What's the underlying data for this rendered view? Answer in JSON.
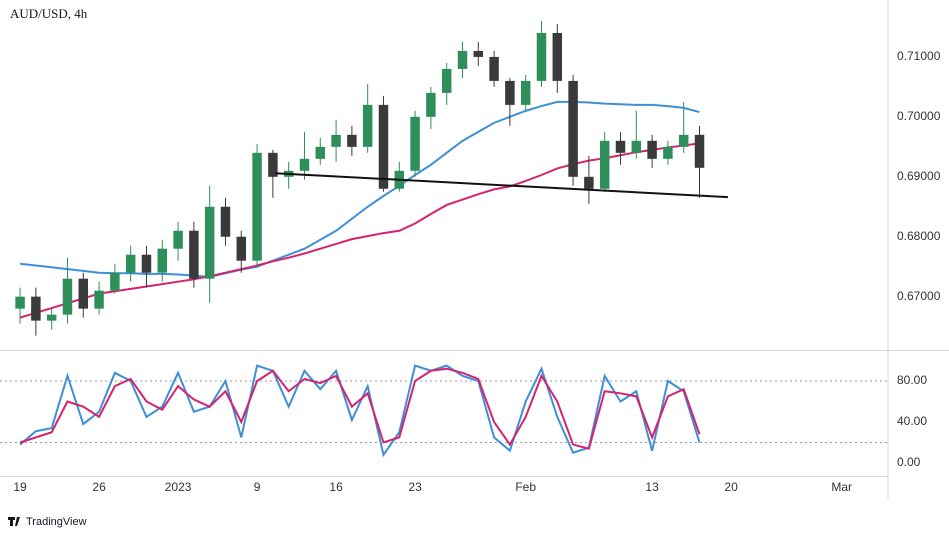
{
  "chart_data": [
    {
      "type": "candlestick",
      "title": "AUD/USD, 4h",
      "x": [
        0,
        1,
        2,
        3,
        4,
        5,
        6,
        7,
        8,
        9,
        10,
        11,
        12,
        13,
        14,
        15,
        16,
        17,
        18,
        19,
        20,
        21,
        22,
        23,
        24,
        25,
        26,
        27,
        28,
        29,
        30,
        31,
        32,
        33,
        34,
        35,
        36,
        37,
        38,
        39,
        40,
        41,
        42,
        43
      ],
      "open": [
        0.668,
        0.67,
        0.666,
        0.667,
        0.673,
        0.668,
        0.671,
        0.674,
        0.677,
        0.674,
        0.678,
        0.681,
        0.673,
        0.685,
        0.68,
        0.676,
        0.694,
        0.69,
        0.691,
        0.693,
        0.695,
        0.697,
        0.695,
        0.702,
        0.688,
        0.691,
        0.7,
        0.704,
        0.708,
        0.711,
        0.71,
        0.706,
        0.702,
        0.706,
        0.714,
        0.706,
        0.69,
        0.688,
        0.696,
        0.694,
        0.696,
        0.693,
        0.695,
        0.697
      ],
      "high": [
        0.6715,
        0.6715,
        0.668,
        0.6765,
        0.674,
        0.6725,
        0.6755,
        0.6785,
        0.6785,
        0.6795,
        0.6825,
        0.6825,
        0.6885,
        0.6865,
        0.681,
        0.6955,
        0.6945,
        0.6925,
        0.6975,
        0.6965,
        0.6995,
        0.6985,
        0.7055,
        0.7035,
        0.6925,
        0.701,
        0.705,
        0.709,
        0.7125,
        0.7125,
        0.711,
        0.7065,
        0.707,
        0.716,
        0.7155,
        0.707,
        0.6935,
        0.6975,
        0.6975,
        0.701,
        0.697,
        0.696,
        0.7025,
        0.6985
      ],
      "low": [
        0.6655,
        0.6635,
        0.6645,
        0.6655,
        0.6665,
        0.667,
        0.6705,
        0.6725,
        0.6715,
        0.6725,
        0.676,
        0.6715,
        0.669,
        0.6785,
        0.674,
        0.675,
        0.6865,
        0.688,
        0.6895,
        0.692,
        0.6925,
        0.6935,
        0.694,
        0.6875,
        0.6875,
        0.69,
        0.698,
        0.702,
        0.7065,
        0.7085,
        0.705,
        0.6985,
        0.701,
        0.705,
        0.704,
        0.6885,
        0.6855,
        0.6875,
        0.692,
        0.693,
        0.6915,
        0.692,
        0.694,
        0.6865
      ],
      "close": [
        0.67,
        0.666,
        0.667,
        0.673,
        0.668,
        0.671,
        0.674,
        0.677,
        0.674,
        0.678,
        0.681,
        0.673,
        0.685,
        0.68,
        0.676,
        0.694,
        0.69,
        0.691,
        0.693,
        0.695,
        0.697,
        0.695,
        0.702,
        0.688,
        0.691,
        0.7,
        0.704,
        0.708,
        0.711,
        0.71,
        0.706,
        0.702,
        0.706,
        0.714,
        0.706,
        0.69,
        0.688,
        0.696,
        0.694,
        0.696,
        0.693,
        0.695,
        0.697,
        0.6915
      ],
      "up_color": "#2f8f5b",
      "down_color": "#3a3a3a",
      "series": [
        {
          "color": "#3d8fd6",
          "values": [
            0.6755,
            0.6752,
            0.6749,
            0.6746,
            0.6743,
            0.674,
            0.6739,
            0.6739,
            0.6738,
            0.6738,
            0.6737,
            0.6735,
            0.6733,
            0.6739,
            0.6745,
            0.675,
            0.676,
            0.677,
            0.678,
            0.6795,
            0.681,
            0.683,
            0.685,
            0.6868,
            0.6885,
            0.6903,
            0.692,
            0.694,
            0.696,
            0.6975,
            0.699,
            0.7,
            0.701,
            0.7018,
            0.7025,
            0.7025,
            0.7024,
            0.7022,
            0.7021,
            0.702,
            0.702,
            0.7018,
            0.7015,
            0.7008
          ]
        },
        {
          "color": "#d6236e",
          "values": [
            0.6665,
            0.6673,
            0.6681,
            0.6689,
            0.6697,
            0.6705,
            0.6709,
            0.6713,
            0.6717,
            0.6721,
            0.6725,
            0.6729,
            0.6734,
            0.674,
            0.6746,
            0.6752,
            0.6759,
            0.6765,
            0.6772,
            0.678,
            0.6788,
            0.6796,
            0.6801,
            0.6806,
            0.681,
            0.6822,
            0.6838,
            0.6853,
            0.6862,
            0.6871,
            0.6879,
            0.6884,
            0.6893,
            0.6903,
            0.6914,
            0.6921,
            0.6927,
            0.6931,
            0.6936,
            0.6941,
            0.6945,
            0.6949,
            0.6952,
            0.6956
          ]
        }
      ],
      "trendline": {
        "x": [
          16.14,
          44.8
        ],
        "y": [
          0.6906,
          0.6866
        ],
        "color": "#111111"
      },
      "xlim": [
        -1.27,
        54.93
      ],
      "ylim": [
        0.6611,
        0.7195
      ],
      "yticks": [
        {
          "value": 0.67,
          "label": "0.67000"
        },
        {
          "value": 0.68,
          "label": "0.68000"
        },
        {
          "value": 0.69,
          "label": "0.69000"
        },
        {
          "value": 0.7,
          "label": "0.70000"
        },
        {
          "value": 0.71,
          "label": "0.71000"
        }
      ]
    },
    {
      "type": "line",
      "x": [
        0,
        1,
        2,
        3,
        4,
        5,
        6,
        7,
        8,
        9,
        10,
        11,
        12,
        13,
        14,
        15,
        16,
        17,
        18,
        19,
        20,
        21,
        22,
        23,
        24,
        25,
        26,
        27,
        28,
        29,
        30,
        31,
        32,
        33,
        34,
        35,
        36,
        37,
        38,
        39,
        40,
        41,
        42,
        43
      ],
      "series": [
        {
          "color": "#3d8fd6",
          "values": [
            18,
            31,
            34,
            85,
            38,
            50,
            88,
            80,
            45,
            55,
            88,
            50,
            55,
            80,
            25,
            95,
            90,
            55,
            90,
            72,
            90,
            42,
            75,
            8,
            30,
            95,
            90,
            95,
            85,
            80,
            25,
            12,
            60,
            92,
            45,
            10,
            15,
            85,
            60,
            70,
            12,
            80,
            70,
            20
          ]
        },
        {
          "color": "#d6236e",
          "values": [
            20,
            25,
            30,
            60,
            55,
            45,
            75,
            82,
            60,
            52,
            75,
            62,
            55,
            70,
            40,
            80,
            90,
            70,
            82,
            78,
            85,
            55,
            68,
            20,
            25,
            80,
            90,
            92,
            88,
            82,
            40,
            18,
            45,
            85,
            60,
            18,
            14,
            70,
            68,
            65,
            25,
            65,
            72,
            28
          ]
        }
      ],
      "levels": [
        20,
        80
      ],
      "xlim": [
        -1.27,
        54.93
      ],
      "ylim": [
        -11.7,
        108.3
      ],
      "yticks": [
        {
          "value": 0,
          "label": "0.00"
        },
        {
          "value": 40,
          "label": "40.00"
        },
        {
          "value": 80,
          "label": "80.00"
        }
      ],
      "xticks": [
        {
          "value": 0,
          "label": "19"
        },
        {
          "value": 5,
          "label": "26"
        },
        {
          "value": 10,
          "label": "2023"
        },
        {
          "value": 15,
          "label": "9"
        },
        {
          "value": 20,
          "label": "16"
        },
        {
          "value": 25,
          "label": "23"
        },
        {
          "value": 32,
          "label": "Feb"
        },
        {
          "value": 40,
          "label": "13"
        },
        {
          "value": 45,
          "label": "20"
        },
        {
          "value": 52,
          "label": "Mar"
        }
      ]
    }
  ],
  "brand": "TradingView"
}
